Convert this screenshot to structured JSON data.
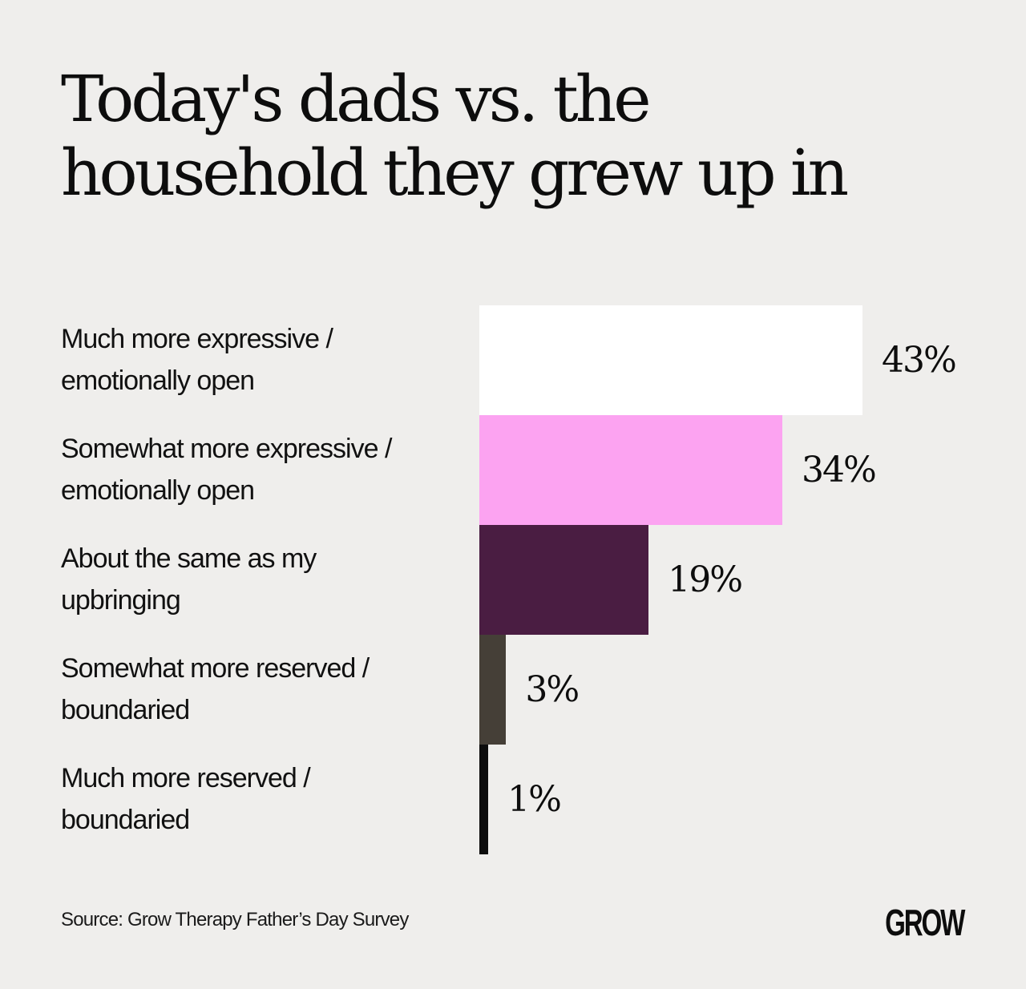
{
  "title_lines": [
    "Today's dads vs. the",
    "household they grew up in"
  ],
  "source": "Source: Grow Therapy Father’s Day Survey",
  "logo": "GROW",
  "chart_data": {
    "type": "bar",
    "orientation": "horizontal",
    "title": "Today's dads vs. the household they grew up in",
    "categories": [
      [
        "Much more expressive /",
        "emotionally open"
      ],
      [
        "Somewhat more expressive /",
        "emotionally open"
      ],
      [
        "About the same as my",
        "upbringing"
      ],
      [
        "Somewhat more reserved /",
        "boundaried"
      ],
      [
        "Much more reserved /",
        "boundaried"
      ]
    ],
    "values": [
      43,
      34,
      19,
      3,
      1
    ],
    "value_labels": [
      "43%",
      "34%",
      "19%",
      "3%",
      "1%"
    ],
    "colors": [
      "#ffffff",
      "#fca3f1",
      "#4a1d42",
      "#453f37",
      "#0d0d0d"
    ],
    "unit": "%",
    "grid": false
  }
}
